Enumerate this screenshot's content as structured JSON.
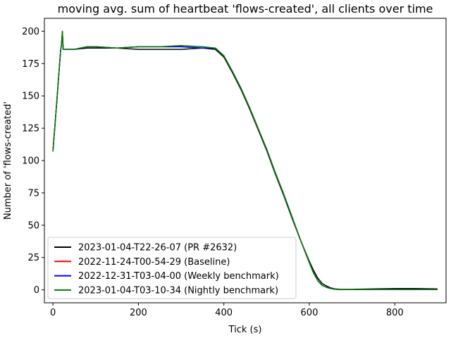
{
  "chart_data": {
    "type": "line",
    "title": "moving avg. sum of heartbeat 'flows-created', all clients over time",
    "xlabel": "Tick (s)",
    "ylabel": "Number of 'flows-created'",
    "xlim": [
      -20,
      920
    ],
    "ylim": [
      -10,
      210
    ],
    "xticks": [
      0,
      200,
      400,
      600,
      800
    ],
    "yticks": [
      0,
      25,
      50,
      75,
      100,
      125,
      150,
      175,
      200
    ],
    "grid": false,
    "legend_position": "lower-left",
    "series": [
      {
        "name": "2023-01-04-T22-26-07 (PR #2632)",
        "color": "#000000",
        "x": [
          0,
          10,
          18,
          20,
          22,
          24,
          30,
          50,
          80,
          100,
          150,
          200,
          250,
          300,
          350,
          380,
          400,
          420,
          440,
          460,
          480,
          500,
          520,
          540,
          560,
          580,
          600,
          610,
          620,
          630,
          640,
          650,
          660,
          670,
          680,
          700,
          750,
          800,
          850,
          900
        ],
        "y": [
          107,
          150,
          185,
          190,
          200,
          186,
          186,
          186,
          187,
          187,
          187,
          186,
          186,
          186,
          187,
          186,
          180,
          168,
          155,
          140,
          124,
          108,
          90,
          73,
          55,
          38,
          22,
          15,
          9,
          5,
          3,
          1.5,
          0.8,
          0.5,
          0.4,
          0.4,
          0.8,
          1,
          1,
          0.8
        ]
      },
      {
        "name": "2022-11-24-T00-54-29 (Baseline)",
        "color": "#ff0000",
        "x": [
          0,
          10,
          18,
          20,
          22,
          24,
          30,
          50,
          80,
          100,
          150,
          200,
          250,
          300,
          350,
          380,
          400,
          420,
          440,
          460,
          480,
          500,
          520,
          540,
          560,
          580,
          600,
          610,
          620,
          630,
          640,
          650,
          660,
          670,
          680,
          700,
          750,
          800,
          850,
          900
        ],
        "y": [
          107,
          150,
          185,
          190,
          199,
          186,
          186,
          186,
          188,
          188,
          187,
          188,
          188,
          188,
          187,
          187,
          181,
          169,
          156,
          141,
          125,
          109,
          91,
          74,
          56,
          38,
          21,
          13,
          7,
          3.5,
          2,
          1,
          0.5,
          0.3,
          0.2,
          0.2,
          0.3,
          0.3,
          0.3,
          0.3
        ]
      },
      {
        "name": "2022-12-31-T03-04-00 (Weekly benchmark)",
        "color": "#0000ff",
        "x": [
          0,
          10,
          18,
          20,
          22,
          24,
          30,
          50,
          80,
          100,
          150,
          200,
          250,
          300,
          350,
          380,
          400,
          420,
          440,
          460,
          480,
          500,
          520,
          540,
          560,
          580,
          600,
          610,
          620,
          630,
          640,
          650,
          660,
          670,
          680,
          700,
          750,
          800,
          850,
          900
        ],
        "y": [
          107,
          150,
          185,
          190,
          199,
          186,
          186,
          186,
          188,
          188,
          187,
          188,
          188,
          188,
          187,
          187,
          181,
          169,
          156,
          141,
          125,
          109,
          91,
          74,
          56,
          38,
          21,
          13,
          7,
          3.5,
          2,
          1,
          0.5,
          0.3,
          0.2,
          0.2,
          0.3,
          0.3,
          0.3,
          0.3
        ]
      },
      {
        "name": "2023-01-04-T03-10-34 (Nightly benchmark)",
        "color": "#008000",
        "x": [
          0,
          10,
          18,
          20,
          22,
          24,
          30,
          50,
          80,
          100,
          150,
          200,
          250,
          300,
          350,
          380,
          400,
          420,
          440,
          460,
          480,
          500,
          520,
          540,
          560,
          580,
          600,
          610,
          620,
          630,
          640,
          650,
          660,
          670,
          680,
          700,
          750,
          800,
          850,
          900
        ],
        "y": [
          107,
          150,
          185,
          190,
          200,
          186,
          186,
          186,
          188,
          188,
          187,
          188,
          188,
          189,
          188,
          187,
          181,
          169,
          156,
          141,
          125,
          109,
          91,
          74,
          56,
          38,
          21,
          13,
          7,
          3.5,
          2,
          1,
          0.5,
          0.3,
          0.2,
          0.2,
          0.3,
          0.3,
          0.3,
          0.3
        ]
      }
    ]
  }
}
